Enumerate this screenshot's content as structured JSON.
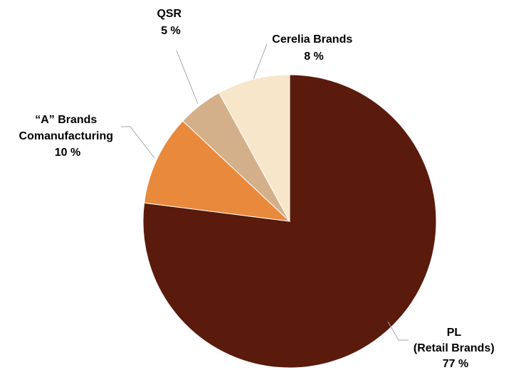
{
  "chart_data": {
    "type": "pie",
    "start_angle_deg": 0,
    "direction": "clockwise",
    "slices": [
      {
        "label_lines": [
          "PL",
          "(Retail Brands)",
          "77 %"
        ],
        "value": 77,
        "color": "#5a1a0c"
      },
      {
        "label_lines": [
          "“A” Brands",
          "Comanufacturing",
          "10 %"
        ],
        "value": 10,
        "color": "#e8893b"
      },
      {
        "label_lines": [
          "QSR",
          "5 %"
        ],
        "value": 5,
        "color": "#d4b08a"
      },
      {
        "label_lines": [
          "Cerelia Brands",
          "8 %"
        ],
        "value": 8,
        "color": "#f7e6c9"
      }
    ]
  }
}
